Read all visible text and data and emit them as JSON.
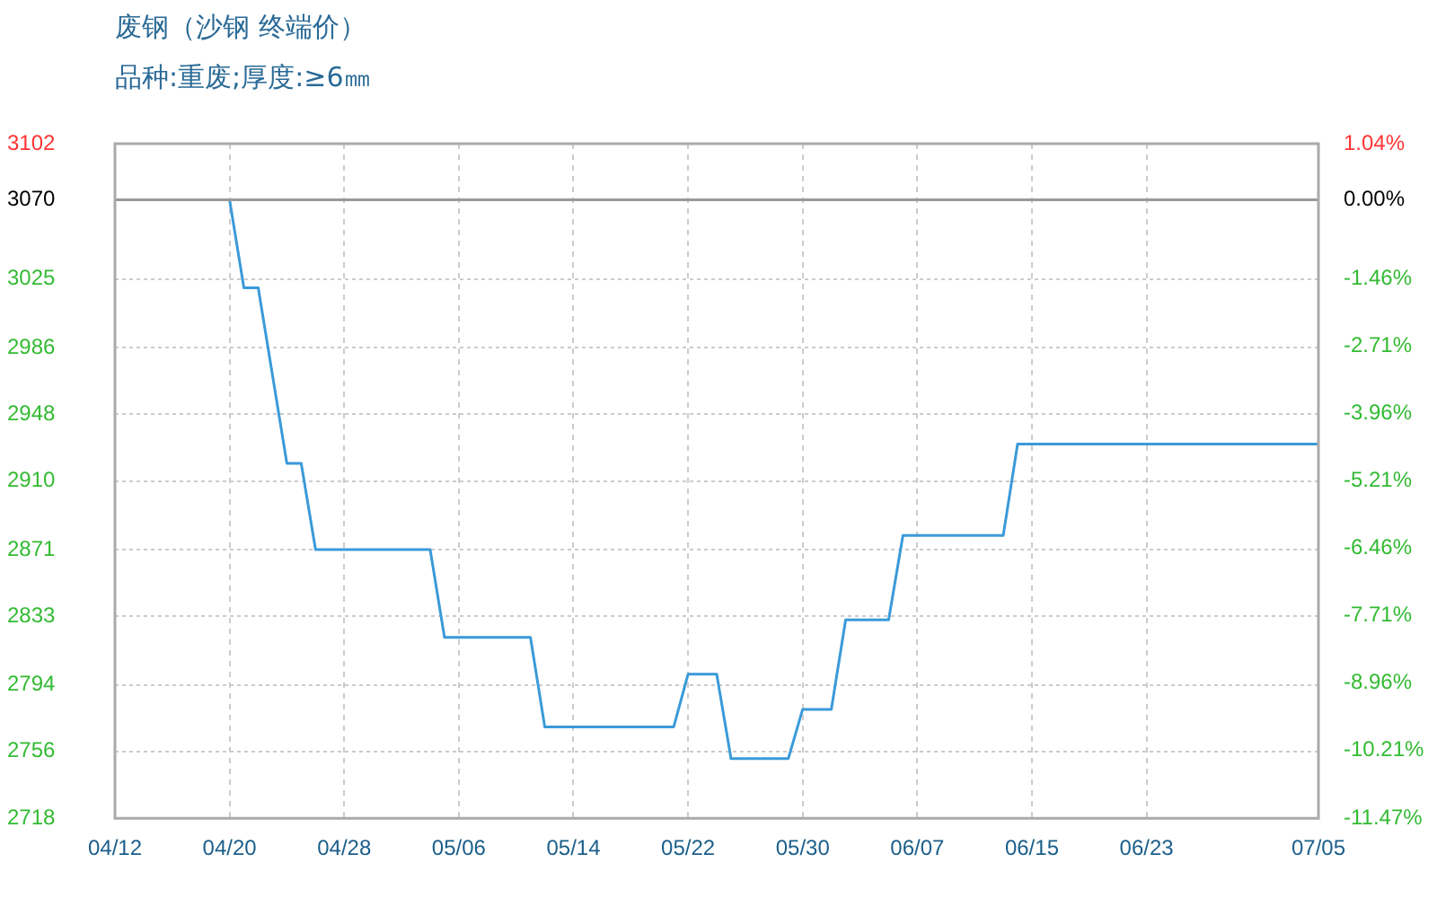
{
  "chart_data": {
    "type": "line",
    "title": "废钢（沙钢 终端价）",
    "subtitle": "品种:重废;厚度:≥6㎜",
    "x": [
      "--04-12",
      "--04-20",
      "--04-21",
      "--04-22",
      "--04-24",
      "--04-25",
      "--04-26",
      "--05-04",
      "--05-05",
      "--05-11",
      "--05-12",
      "--05-21",
      "--05-22",
      "--05-24",
      "--05-25",
      "--05-29",
      "--05-30",
      "--06-01",
      "--06-02",
      "--06-05",
      "--06-06",
      "--06-13",
      "--06-14",
      "--07-05"
    ],
    "series": [
      {
        "color": "#3a9ad9",
        "values": [
          3070,
          3070,
          3020,
          3020,
          2920,
          2920,
          2871,
          2871,
          2821,
          2821,
          2770,
          2770,
          2800,
          2800,
          2752,
          2752,
          2780,
          2780,
          2831,
          2831,
          2879,
          2879,
          2931,
          2931
        ]
      }
    ],
    "xlim": [
      "--04-12",
      "--07-05"
    ],
    "xticks": [
      {
        "value": "--04-12",
        "label": "04/12"
      },
      {
        "value": "--04-20",
        "label": "04/20"
      },
      {
        "value": "--04-28",
        "label": "04/28"
      },
      {
        "value": "--05-06",
        "label": "05/06"
      },
      {
        "value": "--05-14",
        "label": "05/14"
      },
      {
        "value": "--05-22",
        "label": "05/22"
      },
      {
        "value": "--05-30",
        "label": "05/30"
      },
      {
        "value": "--06-07",
        "label": "06/07"
      },
      {
        "value": "--06-15",
        "label": "06/15"
      },
      {
        "value": "--06-23",
        "label": "06/23"
      },
      {
        "value": "--07-05",
        "label": "07/05"
      }
    ],
    "ylim": [
      2718,
      3102
    ],
    "yticks": [
      2718,
      2756,
      2794,
      2833,
      2871,
      2910,
      2948,
      2986,
      3025,
      3070,
      3102
    ],
    "y2lim": [
      -11.47,
      1.04
    ],
    "y2ticks": [
      {
        "value": -11.47,
        "label": "-11.47%"
      },
      {
        "value": -10.21,
        "label": "-10.21%"
      },
      {
        "value": -8.96,
        "label": "-8.96%"
      },
      {
        "value": -7.71,
        "label": "-7.71%"
      },
      {
        "value": -6.46,
        "label": "-6.46%"
      },
      {
        "value": -5.21,
        "label": "-5.21%"
      },
      {
        "value": -3.96,
        "label": "-3.96%"
      },
      {
        "value": -2.71,
        "label": "-2.71%"
      },
      {
        "value": -1.46,
        "label": "-1.46%"
      },
      {
        "value": 0,
        "label": "0.00%"
      },
      {
        "value": 1.04,
        "label": "1.04%"
      }
    ],
    "ref_lines": [
      {
        "axis": "y2",
        "value": 0,
        "color": "#999999"
      }
    ],
    "grid": true,
    "legend": false,
    "marker": "none",
    "line_style": "solid"
  }
}
